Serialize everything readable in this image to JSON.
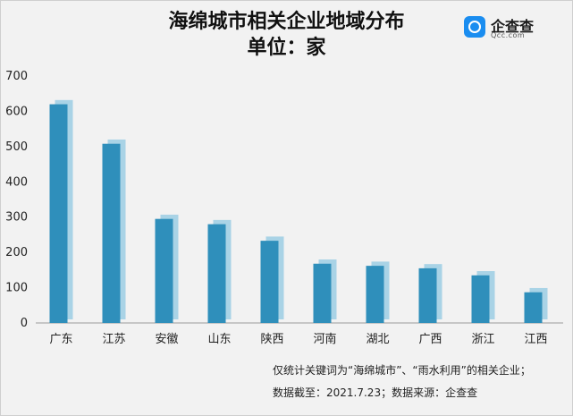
{
  "header": {
    "title": "海绵城市相关企业地域分布",
    "subtitle": "单位：家",
    "brand_name": "企查查",
    "brand_domain": "Qcc.com",
    "brand_icon": "search-icon"
  },
  "footer": {
    "note": "仅统计关键词为“海绵城市”、“雨水利用”的相关企业；",
    "source": "数据截至：2021.7.23；数据来源：企查查"
  },
  "colors": {
    "bar": "#2f8fbb",
    "bar_shadow": "#a9d3e6",
    "axis": "#999999"
  },
  "chart_data": {
    "type": "bar",
    "title": "海绵城市相关企业地域分布",
    "subtitle": "单位：家",
    "categories": [
      "广东",
      "江苏",
      "安徽",
      "山东",
      "陕西",
      "河南",
      "湖北",
      "广西",
      "浙江",
      "江西"
    ],
    "values": [
      620,
      508,
      295,
      280,
      233,
      168,
      162,
      155,
      135,
      87
    ],
    "ylim": [
      0,
      700
    ],
    "yticks": [
      "0",
      "100",
      "200",
      "300",
      "400",
      "500",
      "600",
      "700"
    ],
    "grid": false,
    "legend": "none"
  }
}
